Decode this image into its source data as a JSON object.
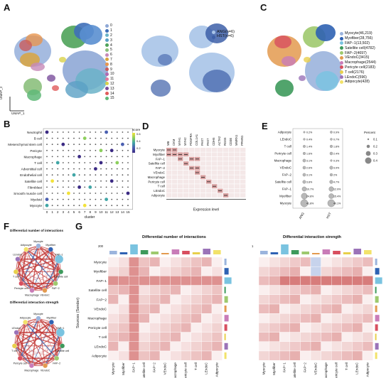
{
  "panels": {
    "A": "A",
    "B": "B",
    "C": "C",
    "D": "D",
    "E": "E",
    "F": "F",
    "G": "G"
  },
  "panelA": {
    "umap_x": "UMAP_1",
    "umap_y": "UMAP_2",
    "clusters": [
      "0",
      "1",
      "2",
      "3",
      "4",
      "5",
      "6",
      "7",
      "8",
      "9",
      "10",
      "11",
      "12",
      "13",
      "14",
      "15"
    ],
    "cluster_colors": [
      "#8fa8d6",
      "#3f6fb8",
      "#6bb3c8",
      "#5aa0c4",
      "#4fa35a",
      "#8cc07d",
      "#c78ab8",
      "#d9a43e",
      "#e8964f",
      "#c95c5c",
      "#b06ab0",
      "#e07a9f",
      "#d9d24a",
      "#7a4f9c",
      "#e05b5b",
      "#5fb878"
    ]
  },
  "panelB_mid": {
    "legend": [
      "ANG(n=6)",
      "HST(n=6)"
    ],
    "legend_colors": [
      "#a9c4e8",
      "#3d5fa8"
    ]
  },
  "panelC": {
    "legend": [
      "Myocyte(46,219)",
      "Myofiber(28,756)",
      "FAP−1(13,502)",
      "Satellite cell(4782)",
      "FAP−2(4697)",
      "VEndoC(3415)",
      "Macrophage(2544)",
      "Pericyte cell(2183)",
      "T cell(2176)",
      "LEndoC(596)",
      "Adipocyte(428)"
    ],
    "legend_colors": [
      "#9bb4dd",
      "#2f62b3",
      "#7ac3e0",
      "#3e9a5c",
      "#9ec96e",
      "#e39a4f",
      "#c97cb8",
      "#d84f5f",
      "#e8d04c",
      "#9b73b8",
      "#f2e26a"
    ]
  },
  "chart_data": [
    {
      "type": "scatter",
      "panel": "B",
      "xlabel": "cluster",
      "ylabel": "",
      "x": [
        "0",
        "1",
        "2",
        "3",
        "4",
        "5",
        "6",
        "7",
        "8",
        "9",
        "10",
        "11",
        "12",
        "13",
        "14",
        "15"
      ],
      "rows": [
        "Neutrophil",
        "B cell",
        "Mesenchymal stem cell",
        "Pericyte",
        "Macrophage",
        "T cell",
        "Adventitial cell",
        "Endothelial cell",
        "Satellite cell",
        "Fibroblast",
        "Smooth muscle cell",
        "Myeloid",
        "Myocyte"
      ],
      "legend_title": "score",
      "legend_ticks": [
        "0.6",
        "0.4",
        "0.2"
      ]
    },
    {
      "type": "heatmap",
      "panel": "D",
      "xlabel": "Expression level",
      "genes": [
        "MB",
        "CKM",
        "MYH1",
        "MYH2",
        "PDGFRA",
        "COL1A1",
        "PAX7",
        "PAX7",
        "CDH5",
        "ACTA2",
        "RGS5",
        "CD3E",
        "MMRN1",
        "PPARG"
      ],
      "rows": [
        "Myocyte",
        "Myofiber",
        "FAP−1",
        "Satellite cell",
        "FAP−2",
        "VEndoC",
        "Macrophage",
        "Pericyte cell",
        "T cell",
        "LEndoC",
        "Adipocyte"
      ]
    },
    {
      "type": "scatter",
      "panel": "E",
      "categories": [
        "ANG",
        "HST"
      ],
      "rows": [
        "Adipocyte",
        "LEndoC",
        "T cell",
        "Pericyte cell",
        "Macrophage",
        "VEndoC",
        "FAP−2",
        "Satellite cell",
        "FAP−1",
        "Myofiber",
        "Myocyte"
      ],
      "ang_labels": [
        "0.2%",
        "0.4%",
        "1.4%",
        "1.6%",
        "3.1%",
        "2.6%",
        "3.1%",
        "3.8%",
        "10.7%",
        "24.8%",
        "41.8%"
      ],
      "hst_labels": [
        "0.9%",
        "0.7%",
        "1.8%",
        "2.4%",
        "0.3%",
        "3.9%",
        "2%",
        "4.7%",
        "12.9%",
        "15.4%",
        "40.1%"
      ],
      "ang_values": [
        0.2,
        0.4,
        1.4,
        1.6,
        3.1,
        2.6,
        3.1,
        3.8,
        10.7,
        24.8,
        41.8
      ],
      "hst_values": [
        0.9,
        0.7,
        1.8,
        2.4,
        0.3,
        3.9,
        2,
        4.7,
        12.9,
        15.4,
        40.1
      ],
      "legend_title": "Percent",
      "legend_ticks": [
        "0.1",
        "0.2",
        "0.3",
        "0.4"
      ]
    },
    {
      "type": "heatmap",
      "panel": "G",
      "titles": [
        "Differential number of interactions",
        "Differential interaction strength"
      ],
      "ylabel": "Sources (Sender)",
      "rows": [
        "Myocyte",
        "Myofiber",
        "FAP−1",
        "Satellite cell",
        "FAP−2",
        "VEndoC",
        "Macrophage",
        "Pericyte cell",
        "T cell",
        "LEndoC",
        "Adipocyte"
      ],
      "columns": [
        "Myocyte",
        "Myofiber",
        "FAP−1",
        "Satellite cell",
        "FAP−2",
        "VEndoC",
        "Macrophage",
        "Pericyte cell",
        "T cell",
        "LEndoC",
        "Adipocyte"
      ],
      "left_top_scale": "200",
      "right_top_scale": "1"
    }
  ],
  "panelF": {
    "titles": [
      "Differential number of interactions",
      "Differential interaction strength"
    ],
    "nodes": [
      "Myocyte",
      "Myofiber",
      "FAP−1",
      "Satellite cell",
      "FAP−2",
      "VEndoC",
      "Macrophage",
      "Pericyte cell",
      "T cell",
      "LEndoC",
      "Adipocyte"
    ],
    "node_colors": [
      "#9bb4dd",
      "#2f62b3",
      "#7ac3e0",
      "#3e9a5c",
      "#9ec96e",
      "#e39a4f",
      "#c97cb8",
      "#d84f5f",
      "#e8d04c",
      "#9b73b8",
      "#f2e26a"
    ]
  },
  "colors": {
    "red": "#c0302e",
    "blue": "#3d5fa8"
  }
}
